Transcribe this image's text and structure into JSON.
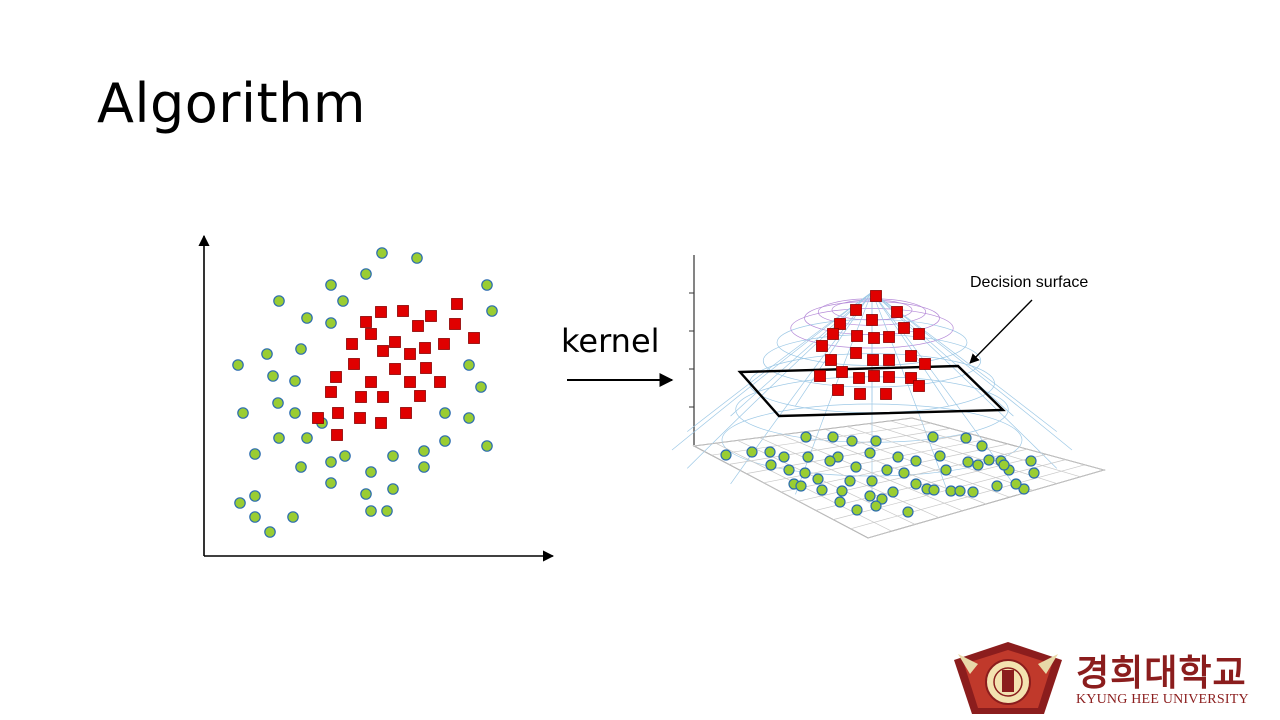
{
  "slide": {
    "title": "Algorithm"
  },
  "diagram": {
    "arrow_label": "kernel",
    "surface_label": "Decision surface",
    "colors": {
      "circle_fill": "#9acd32",
      "circle_stroke": "#2b6cb0",
      "square_fill": "#e00000",
      "square_stroke": "#8b0000",
      "mesh": "#9ec9e6",
      "peak_mesh": "#b58ad8"
    }
  },
  "logo": {
    "korean_name": "경희대학교",
    "english_name": "KYUNG HEE UNIVERSITY",
    "brand_color": "#8b1d1d"
  }
}
